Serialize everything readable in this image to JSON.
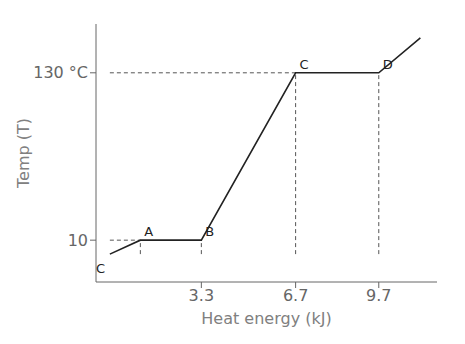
{
  "chart_data": {
    "type": "line",
    "xlabel": "Heat energy (kJ)",
    "ylabel": "Temp (T)",
    "x": [
      0,
      1.1,
      3.3,
      6.7,
      9.7,
      11.2
    ],
    "values": [
      0,
      10,
      10,
      130,
      130,
      155
    ],
    "color": "#222222",
    "xlim": [
      -0.5,
      11.8
    ],
    "ylim": [
      -20,
      165
    ],
    "xticks": [
      3.3,
      6.7,
      9.7
    ],
    "yticks": [
      10,
      {
        "value": 130,
        "label": "130 °C"
      }
    ],
    "dashed_lines": {
      "color": "#555555",
      "line_style": "dashed",
      "lines": [
        {
          "x": [
            0,
            1.1
          ],
          "y": [
            10,
            10
          ]
        },
        {
          "x": [
            1.1,
            1.1
          ],
          "y": [
            0,
            10
          ]
        },
        {
          "x": [
            0,
            6.7
          ],
          "y": [
            130,
            130
          ]
        },
        {
          "x": [
            3.3,
            3.3
          ],
          "y": [
            0,
            10
          ]
        },
        {
          "x": [
            6.7,
            6.7
          ],
          "y": [
            0,
            130
          ]
        },
        {
          "x": [
            9.7,
            9.7
          ],
          "y": [
            0,
            130
          ]
        }
      ]
    },
    "annotations": [
      {
        "text": "A",
        "x": 1.1,
        "y": 10
      },
      {
        "text": "B",
        "x": 3.3,
        "y": 10
      },
      {
        "text": "C",
        "x": 6.7,
        "y": 130
      },
      {
        "text": "D",
        "x": 9.7,
        "y": 130
      },
      {
        "text": "C",
        "x": -0.1,
        "y": -5
      }
    ]
  }
}
